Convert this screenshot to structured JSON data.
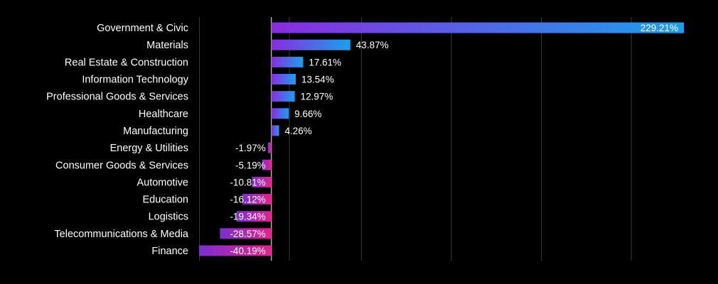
{
  "chart_data": {
    "type": "bar",
    "orientation": "horizontal",
    "categories": [
      "Government & Civic",
      "Materials",
      "Real Estate & Construction",
      "Information Technology",
      "Professional Goods & Services",
      "Healthcare",
      "Manufacturing",
      "Energy & Utilities",
      "Consumer Goods & Services",
      "Automotive",
      "Education",
      "Logistics",
      "Telecommunications & Media",
      "Finance"
    ],
    "values": [
      229.21,
      43.87,
      17.61,
      13.54,
      12.97,
      9.66,
      4.26,
      -1.97,
      -5.19,
      -10.81,
      -16.12,
      -19.34,
      -28.57,
      -40.19
    ],
    "value_labels": [
      "229.21%",
      "43.87%",
      "17.61%",
      "13.54%",
      "12.97%",
      "9.66%",
      "4.26%",
      "-1.97%",
      "-5.19%",
      "-10.81%",
      "-16.12%",
      "-19.34%",
      "-28.57%",
      "-40.19%"
    ],
    "unit": "%",
    "xlim": [
      -40.19,
      229.21
    ],
    "gridlines": [
      -40,
      0,
      10,
      50,
      100,
      150,
      200
    ],
    "grid": true,
    "legend": "none",
    "colors": {
      "background": "#000000",
      "text": "#ffffff",
      "grid": "#3a3a3a",
      "positive_gradient": [
        "#8a2be2",
        "#1aa0ee"
      ],
      "negative_gradient": [
        "#7b2fd0",
        "#e8208a"
      ]
    }
  }
}
